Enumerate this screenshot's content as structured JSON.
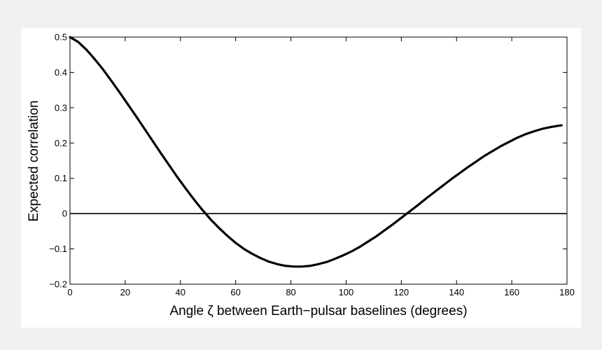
{
  "chart_data": {
    "type": "line",
    "title": "",
    "xlabel": "Angle ζ between Earth−pulsar baselines (degrees)",
    "ylabel": "Expected correlation",
    "xlim": [
      0,
      180
    ],
    "ylim": [
      -0.2,
      0.5
    ],
    "xticks": [
      0,
      20,
      40,
      60,
      80,
      100,
      120,
      140,
      160,
      180
    ],
    "yticks": [
      -0.2,
      -0.1,
      0,
      0.1,
      0.2,
      0.3,
      0.4,
      0.5
    ],
    "xtick_labels": [
      "0",
      "20",
      "40",
      "60",
      "80",
      "100",
      "120",
      "140",
      "160",
      "180"
    ],
    "ytick_labels": [
      "−0.2",
      "−0.1",
      "0",
      "0.1",
      "0.2",
      "0.3",
      "0.4",
      "0.5"
    ],
    "grid": false,
    "zero_line": true,
    "series": [
      {
        "color": "#000000",
        "x": [
          0,
          3,
          6,
          9,
          12,
          15,
          18,
          21,
          24,
          27,
          30,
          33,
          36,
          39,
          42,
          45,
          48,
          51,
          54,
          57,
          60,
          63,
          66,
          69,
          72,
          75,
          78,
          81,
          84,
          87,
          90,
          93,
          96,
          99,
          102,
          105,
          108,
          111,
          114,
          117,
          120,
          123,
          126,
          129,
          132,
          135,
          138,
          141,
          144,
          147,
          150,
          153,
          156,
          159,
          162,
          165,
          168,
          171,
          174,
          177,
          178
        ],
        "y": [
          0.5,
          0.486,
          0.464,
          0.437,
          0.408,
          0.376,
          0.343,
          0.309,
          0.275,
          0.24,
          0.205,
          0.17,
          0.136,
          0.102,
          0.07,
          0.039,
          0.01,
          -0.017,
          -0.041,
          -0.063,
          -0.083,
          -0.1,
          -0.114,
          -0.126,
          -0.136,
          -0.143,
          -0.148,
          -0.15,
          -0.15,
          -0.148,
          -0.143,
          -0.137,
          -0.128,
          -0.118,
          -0.107,
          -0.094,
          -0.079,
          -0.064,
          -0.047,
          -0.03,
          -0.012,
          0.006,
          0.024,
          0.043,
          0.061,
          0.079,
          0.097,
          0.114,
          0.131,
          0.147,
          0.163,
          0.177,
          0.191,
          0.203,
          0.215,
          0.225,
          0.233,
          0.24,
          0.245,
          0.249,
          0.25
        ]
      }
    ]
  }
}
